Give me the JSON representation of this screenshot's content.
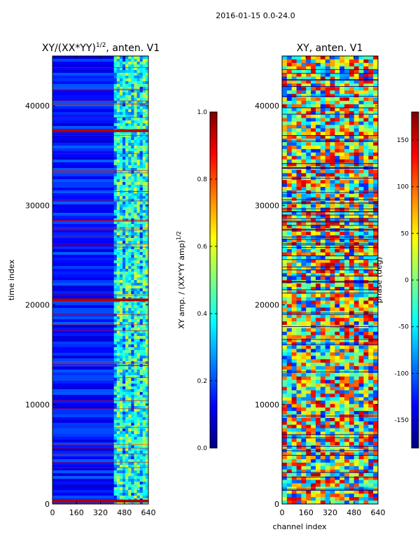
{
  "figure": {
    "suptitle": "2016-01-15 0.0-24.0"
  },
  "chart_data": [
    {
      "type": "heatmap",
      "title_main": "XY/(XX*YY)",
      "title_exp": "1/2",
      "title_rest": ", anten. V1",
      "xlabel": "",
      "ylabel": "time index",
      "x_ticks": [
        "0",
        "160",
        "320",
        "480",
        "640"
      ],
      "y_ticks": [
        "0",
        "10000",
        "20000",
        "30000",
        "40000"
      ],
      "xlim": [
        0,
        640
      ],
      "ylim": [
        0,
        45000
      ],
      "colormap": "jet",
      "colorbar": {
        "label_main": "XY amp. / (XX*YY amp)",
        "label_exp": "1/2",
        "ticks": [
          "0.0",
          "0.2",
          "0.4",
          "0.6",
          "0.8",
          "1.0"
        ],
        "range": [
          0.0,
          1.0
        ]
      },
      "features": {
        "bright_band_channels": [
          400,
          640
        ],
        "saturated_rows_time_index": [
          20500,
          37500,
          300
        ]
      }
    },
    {
      "type": "heatmap",
      "title": "XY, anten. V1",
      "xlabel": "channel index",
      "ylabel": "",
      "x_ticks": [
        "0",
        "160",
        "320",
        "480",
        "640"
      ],
      "y_ticks": [
        "0",
        "10000",
        "20000",
        "30000",
        "40000"
      ],
      "xlim": [
        0,
        640
      ],
      "ylim": [
        0,
        45000
      ],
      "colormap": "jet",
      "colorbar": {
        "label": "phase (deg)",
        "ticks": [
          "-150",
          "-100",
          "-50",
          "0",
          "50",
          "100",
          "150"
        ],
        "range": [
          -180,
          180
        ]
      }
    }
  ]
}
